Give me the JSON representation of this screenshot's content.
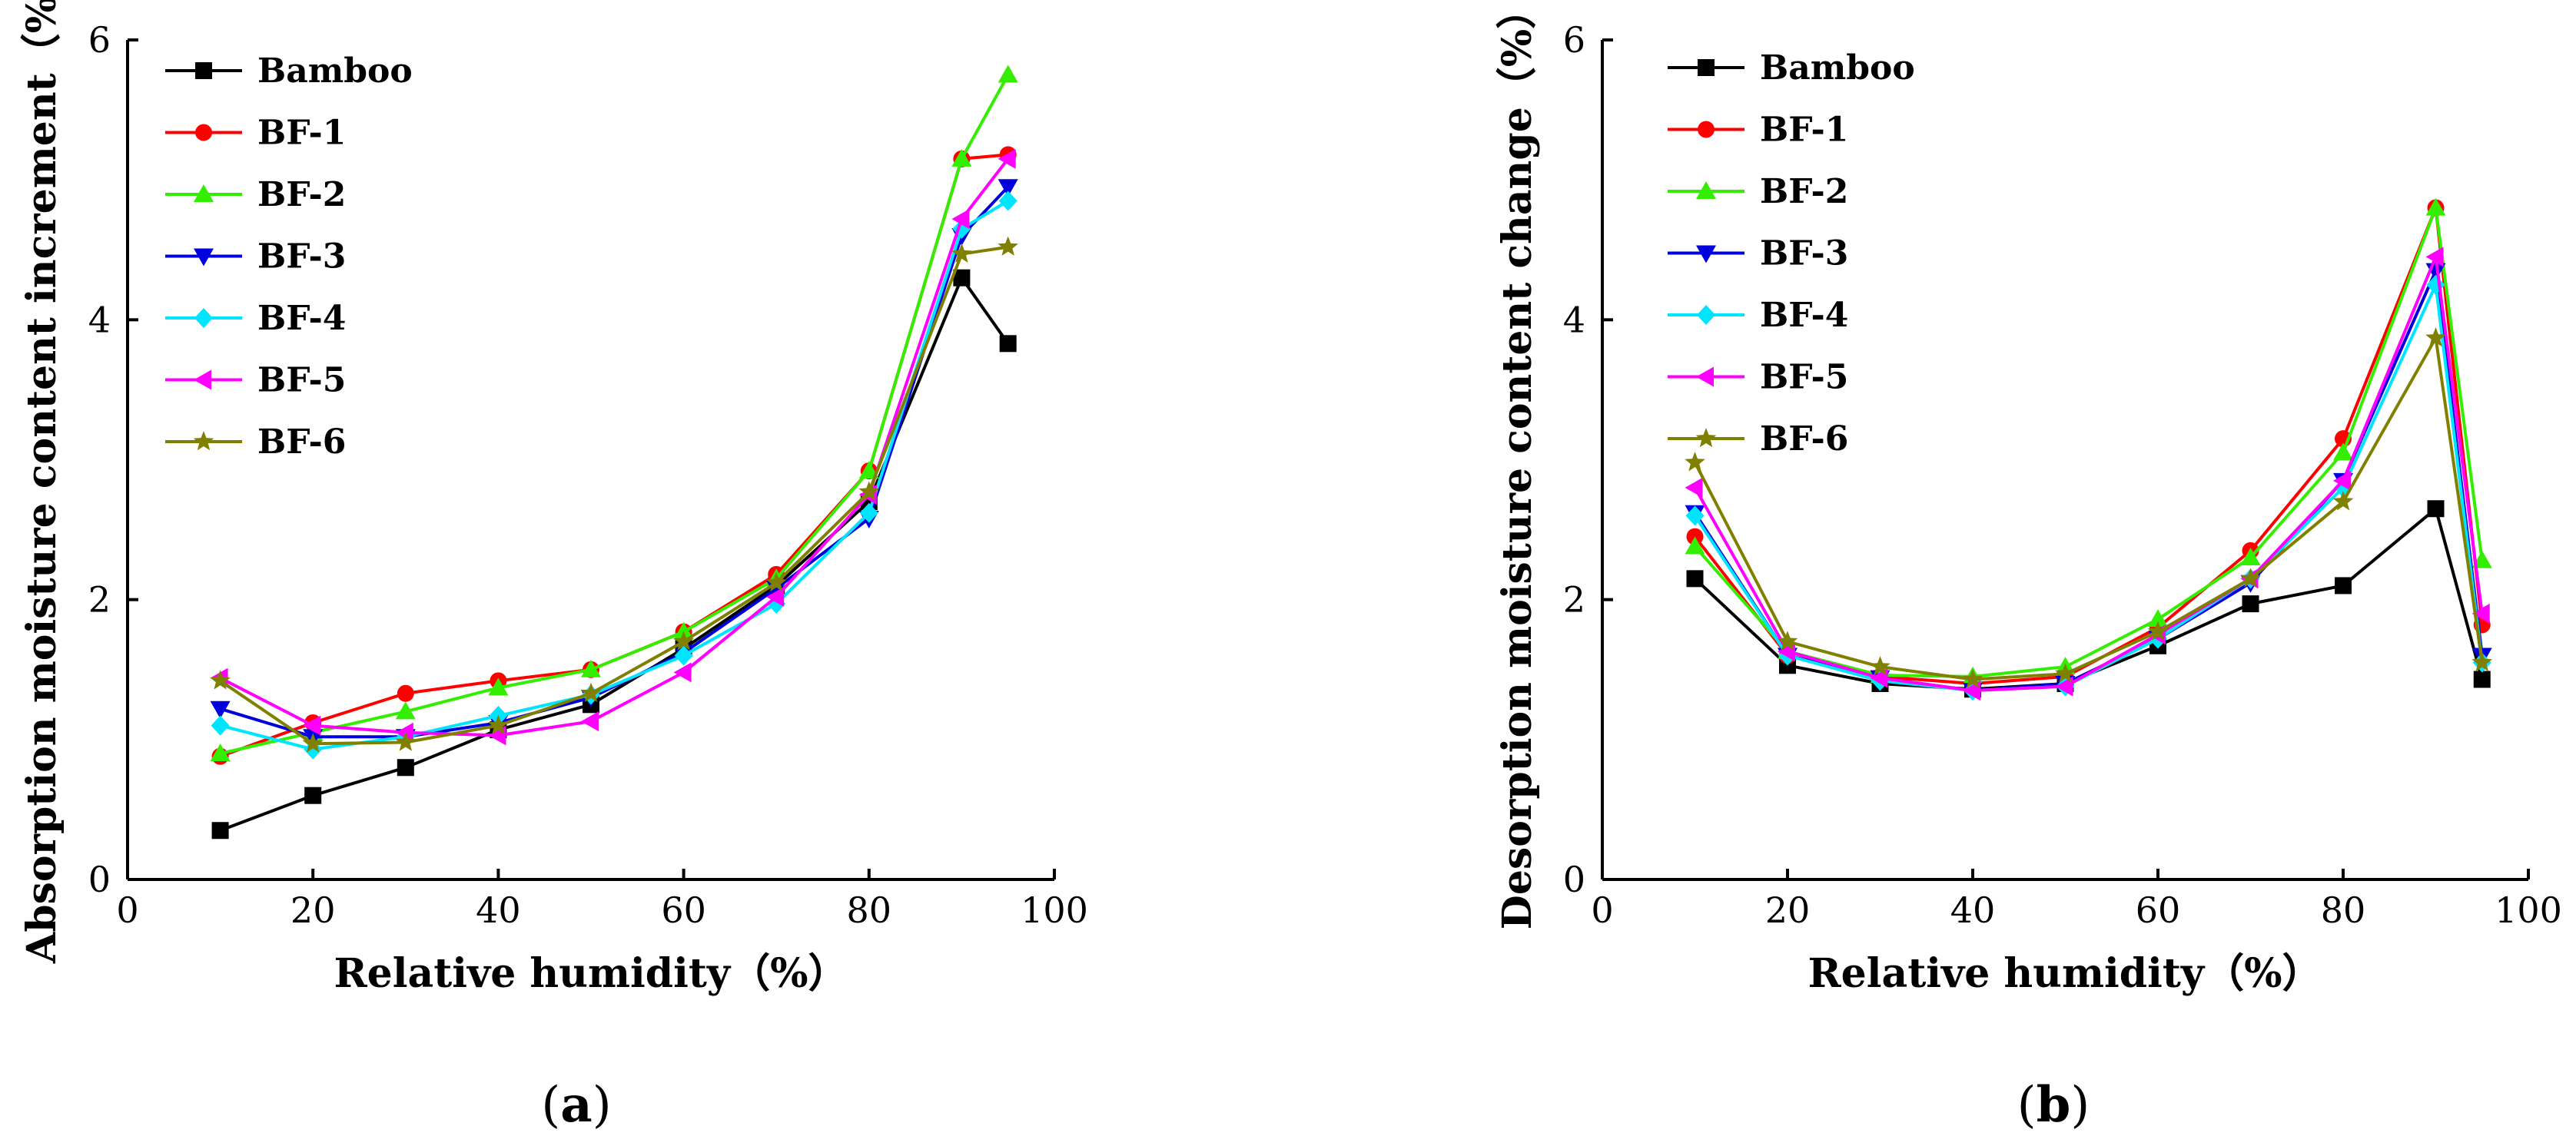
{
  "series_colors": {
    "Bamboo": "#000000",
    "BF-1": "#ff0000",
    "BF-2": "#33ee00",
    "BF-3": "#0000dd",
    "BF-4": "#00e5ff",
    "BF-5": "#ff00ff",
    "BF-6": "#808000"
  },
  "chart_data": [
    {
      "type": "line",
      "panel_label": "a",
      "xlabel": "Relative humidity（%）",
      "ylabel": "Absorption moisture content increment（%）",
      "xlim": [
        0,
        100
      ],
      "ylim": [
        0,
        6
      ],
      "xticks": [
        0,
        20,
        40,
        60,
        80,
        100
      ],
      "yticks": [
        0,
        2,
        4,
        6
      ],
      "legend_position": "top-left",
      "x": [
        10,
        20,
        30,
        40,
        50,
        60,
        70,
        80,
        90,
        95
      ],
      "series": [
        {
          "name": "Bamboo",
          "marker": "square",
          "values": [
            0.35,
            0.6,
            0.8,
            1.07,
            1.25,
            1.65,
            2.1,
            2.7,
            4.3,
            3.83
          ]
        },
        {
          "name": "BF-1",
          "marker": "circle",
          "values": [
            0.88,
            1.12,
            1.33,
            1.42,
            1.5,
            1.77,
            2.18,
            2.92,
            5.15,
            5.18
          ]
        },
        {
          "name": "BF-2",
          "marker": "triangle-up",
          "values": [
            0.9,
            1.05,
            1.2,
            1.37,
            1.5,
            1.77,
            2.15,
            2.92,
            5.15,
            5.75
          ]
        },
        {
          "name": "BF-3",
          "marker": "triangle-down",
          "values": [
            1.22,
            1.02,
            1.02,
            1.12,
            1.3,
            1.62,
            2.08,
            2.58,
            4.6,
            4.95
          ]
        },
        {
          "name": "BF-4",
          "marker": "diamond",
          "values": [
            1.1,
            0.93,
            1.02,
            1.17,
            1.32,
            1.6,
            1.97,
            2.62,
            4.65,
            4.85
          ]
        },
        {
          "name": "BF-5",
          "marker": "triangle-left",
          "values": [
            1.44,
            1.1,
            1.05,
            1.03,
            1.13,
            1.48,
            2.02,
            2.75,
            4.72,
            5.15
          ]
        },
        {
          "name": "BF-6",
          "marker": "star",
          "values": [
            1.42,
            0.97,
            0.98,
            1.1,
            1.33,
            1.7,
            2.12,
            2.77,
            4.47,
            4.52
          ]
        }
      ]
    },
    {
      "type": "line",
      "panel_label": "b",
      "xlabel": "Relative humidity（%）",
      "ylabel": "Desorption moisture content change（%）",
      "xlim": [
        0,
        100
      ],
      "ylim": [
        0,
        6
      ],
      "xticks": [
        0,
        20,
        40,
        60,
        80,
        100
      ],
      "yticks": [
        0,
        2,
        4,
        6
      ],
      "legend_position": "top-left",
      "x": [
        10,
        20,
        30,
        40,
        50,
        60,
        70,
        80,
        90,
        95
      ],
      "series": [
        {
          "name": "Bamboo",
          "marker": "square",
          "values": [
            2.15,
            1.53,
            1.4,
            1.36,
            1.4,
            1.67,
            1.97,
            2.1,
            2.65,
            1.43
          ]
        },
        {
          "name": "BF-1",
          "marker": "circle",
          "values": [
            2.45,
            1.6,
            1.45,
            1.4,
            1.45,
            1.8,
            2.35,
            3.15,
            4.8,
            1.82
          ]
        },
        {
          "name": "BF-2",
          "marker": "triangle-up",
          "values": [
            2.38,
            1.63,
            1.46,
            1.45,
            1.52,
            1.86,
            2.3,
            3.05,
            4.8,
            2.28
          ]
        },
        {
          "name": "BF-3",
          "marker": "triangle-down",
          "values": [
            2.62,
            1.6,
            1.44,
            1.35,
            1.4,
            1.72,
            2.12,
            2.85,
            4.35,
            1.6
          ]
        },
        {
          "name": "BF-4",
          "marker": "diamond",
          "values": [
            2.6,
            1.6,
            1.42,
            1.35,
            1.38,
            1.72,
            2.15,
            2.8,
            4.25,
            1.55
          ]
        },
        {
          "name": "BF-5",
          "marker": "triangle-left",
          "values": [
            2.8,
            1.63,
            1.44,
            1.35,
            1.38,
            1.75,
            2.15,
            2.85,
            4.45,
            1.9
          ]
        },
        {
          "name": "BF-6",
          "marker": "star",
          "values": [
            2.98,
            1.7,
            1.52,
            1.43,
            1.47,
            1.77,
            2.15,
            2.7,
            3.87,
            1.55
          ]
        }
      ]
    }
  ]
}
